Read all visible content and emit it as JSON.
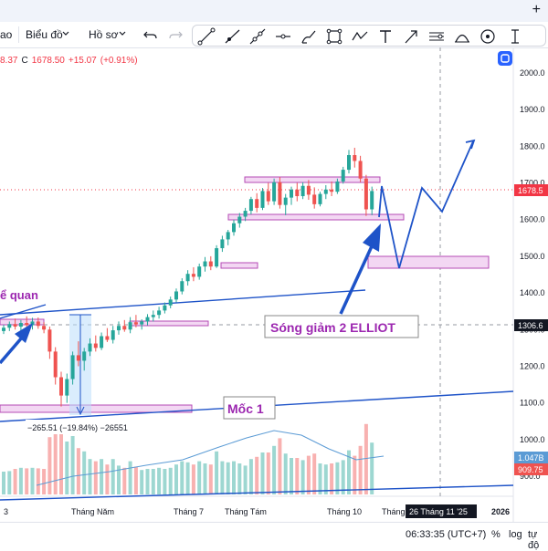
{
  "toolbar": {
    "left_item": "ao",
    "chart_menu": "Biểu đồ",
    "profile_menu": "Hồ sơ",
    "add_icon": "plus-icon",
    "undo_icon": "undo-icon",
    "redo_icon": "redo-icon",
    "dropdown_icon": "chevron-down-icon"
  },
  "drawing_tools": [
    "trend-line-icon",
    "ray-icon",
    "extended-line-icon",
    "horizontal-ray-icon",
    "brush-icon",
    "rectangle-icon",
    "path-icon",
    "text-icon",
    "arrow-marker-icon",
    "fib-icon",
    "curve-icon",
    "circle-icon",
    "more-icon"
  ],
  "ohlc": {
    "partial": "8.37",
    "close_label": "C",
    "close": "1678.50",
    "change": "+15.07",
    "change_pct": "(+0.91%)"
  },
  "price_labels": {
    "current": "1678.5",
    "crosshair": "1306.6",
    "volume_1": "1.047B",
    "volume_2": "909.75"
  },
  "annotations": {
    "left_text": "ể quan",
    "wave_text": "Sóng giảm 2 ELLIOT",
    "milestone_text": "Mốc 1",
    "measure_text": "−265.51 (−19.84%) −26551"
  },
  "crosshair_date": "26 Tháng 11 '25",
  "status": {
    "time": "06:33:35 (UTC+7)",
    "percent": "%",
    "log": "log",
    "auto": "tự độ"
  },
  "colors": {
    "up": "#26a69a",
    "down": "#ef5350",
    "annotation_blue": "#1e53c8",
    "zone_fill": "#f3d7f3",
    "zone_border": "#b44bb4",
    "price_tag": "#f23645",
    "label_purple": "#9c27b0"
  },
  "chart_data": {
    "type": "candlestick",
    "ylim": [
      850,
      2050
    ],
    "yticks": [
      900,
      1000,
      1100,
      1200,
      1300,
      1400,
      1500,
      1600,
      1700,
      1800,
      1900,
      2000
    ],
    "ytick_labels": [
      "900.0",
      "1000.0",
      "1100.0",
      "1200.0",
      "1300.0",
      "1400.0",
      "1500.0",
      "1600.0",
      "1700.0",
      "1800.0",
      "1900.0",
      "2000.0"
    ],
    "x_labels": [
      "3",
      "Tháng Năm",
      "Tháng 7",
      "Tháng Tám",
      "Tháng 10",
      "Tháng",
      "2026"
    ],
    "candles": [
      {
        "i": 0,
        "o": 1296,
        "h": 1313,
        "l": 1288,
        "c": 1305
      },
      {
        "i": 1,
        "o": 1305,
        "h": 1322,
        "l": 1296,
        "c": 1315
      },
      {
        "i": 2,
        "o": 1315,
        "h": 1330,
        "l": 1300,
        "c": 1308
      },
      {
        "i": 3,
        "o": 1308,
        "h": 1326,
        "l": 1294,
        "c": 1318
      },
      {
        "i": 4,
        "o": 1318,
        "h": 1336,
        "l": 1305,
        "c": 1312
      },
      {
        "i": 5,
        "o": 1312,
        "h": 1332,
        "l": 1300,
        "c": 1322
      },
      {
        "i": 6,
        "o": 1322,
        "h": 1333,
        "l": 1302,
        "c": 1310
      },
      {
        "i": 7,
        "o": 1310,
        "h": 1320,
        "l": 1290,
        "c": 1300
      },
      {
        "i": 8,
        "o": 1300,
        "h": 1308,
        "l": 1220,
        "c": 1240
      },
      {
        "i": 9,
        "o": 1240,
        "h": 1252,
        "l": 1150,
        "c": 1170
      },
      {
        "i": 10,
        "o": 1170,
        "h": 1185,
        "l": 1090,
        "c": 1120
      },
      {
        "i": 11,
        "o": 1120,
        "h": 1180,
        "l": 1100,
        "c": 1165
      },
      {
        "i": 12,
        "o": 1165,
        "h": 1240,
        "l": 1150,
        "c": 1230
      },
      {
        "i": 13,
        "o": 1230,
        "h": 1268,
        "l": 1200,
        "c": 1215
      },
      {
        "i": 14,
        "o": 1215,
        "h": 1250,
        "l": 1188,
        "c": 1240
      },
      {
        "i": 15,
        "o": 1240,
        "h": 1276,
        "l": 1228,
        "c": 1262
      },
      {
        "i": 16,
        "o": 1262,
        "h": 1284,
        "l": 1240,
        "c": 1250
      },
      {
        "i": 17,
        "o": 1250,
        "h": 1292,
        "l": 1244,
        "c": 1282
      },
      {
        "i": 18,
        "o": 1282,
        "h": 1304,
        "l": 1266,
        "c": 1272
      },
      {
        "i": 19,
        "o": 1272,
        "h": 1310,
        "l": 1262,
        "c": 1298
      },
      {
        "i": 20,
        "o": 1298,
        "h": 1322,
        "l": 1286,
        "c": 1310
      },
      {
        "i": 21,
        "o": 1310,
        "h": 1326,
        "l": 1294,
        "c": 1300
      },
      {
        "i": 22,
        "o": 1300,
        "h": 1334,
        "l": 1290,
        "c": 1320
      },
      {
        "i": 23,
        "o": 1320,
        "h": 1340,
        "l": 1306,
        "c": 1314
      },
      {
        "i": 24,
        "o": 1314,
        "h": 1328,
        "l": 1300,
        "c": 1322
      },
      {
        "i": 25,
        "o": 1322,
        "h": 1342,
        "l": 1312,
        "c": 1334
      },
      {
        "i": 26,
        "o": 1334,
        "h": 1352,
        "l": 1322,
        "c": 1340
      },
      {
        "i": 27,
        "o": 1340,
        "h": 1362,
        "l": 1330,
        "c": 1352
      },
      {
        "i": 28,
        "o": 1352,
        "h": 1374,
        "l": 1344,
        "c": 1366
      },
      {
        "i": 29,
        "o": 1366,
        "h": 1390,
        "l": 1358,
        "c": 1382
      },
      {
        "i": 30,
        "o": 1382,
        "h": 1412,
        "l": 1374,
        "c": 1404
      },
      {
        "i": 31,
        "o": 1404,
        "h": 1440,
        "l": 1396,
        "c": 1432
      },
      {
        "i": 32,
        "o": 1432,
        "h": 1462,
        "l": 1420,
        "c": 1452
      },
      {
        "i": 33,
        "o": 1452,
        "h": 1470,
        "l": 1432,
        "c": 1444
      },
      {
        "i": 34,
        "o": 1444,
        "h": 1480,
        "l": 1436,
        "c": 1472
      },
      {
        "i": 35,
        "o": 1472,
        "h": 1498,
        "l": 1458,
        "c": 1486
      },
      {
        "i": 36,
        "o": 1486,
        "h": 1500,
        "l": 1462,
        "c": 1472
      },
      {
        "i": 37,
        "o": 1472,
        "h": 1530,
        "l": 1468,
        "c": 1522
      },
      {
        "i": 38,
        "o": 1522,
        "h": 1556,
        "l": 1512,
        "c": 1546
      },
      {
        "i": 39,
        "o": 1546,
        "h": 1572,
        "l": 1530,
        "c": 1566
      },
      {
        "i": 40,
        "o": 1566,
        "h": 1600,
        "l": 1556,
        "c": 1590
      },
      {
        "i": 41,
        "o": 1590,
        "h": 1618,
        "l": 1578,
        "c": 1608
      },
      {
        "i": 42,
        "o": 1608,
        "h": 1632,
        "l": 1596,
        "c": 1624
      },
      {
        "i": 43,
        "o": 1624,
        "h": 1662,
        "l": 1614,
        "c": 1656
      },
      {
        "i": 44,
        "o": 1656,
        "h": 1672,
        "l": 1620,
        "c": 1632
      },
      {
        "i": 45,
        "o": 1632,
        "h": 1686,
        "l": 1626,
        "c": 1678
      },
      {
        "i": 46,
        "o": 1678,
        "h": 1700,
        "l": 1640,
        "c": 1650
      },
      {
        "i": 47,
        "o": 1650,
        "h": 1712,
        "l": 1640,
        "c": 1702
      },
      {
        "i": 48,
        "o": 1702,
        "h": 1716,
        "l": 1630,
        "c": 1640
      },
      {
        "i": 49,
        "o": 1640,
        "h": 1670,
        "l": 1612,
        "c": 1660
      },
      {
        "i": 50,
        "o": 1660,
        "h": 1690,
        "l": 1640,
        "c": 1682
      },
      {
        "i": 51,
        "o": 1682,
        "h": 1700,
        "l": 1650,
        "c": 1664
      },
      {
        "i": 52,
        "o": 1664,
        "h": 1702,
        "l": 1656,
        "c": 1692
      },
      {
        "i": 53,
        "o": 1692,
        "h": 1708,
        "l": 1654,
        "c": 1668
      },
      {
        "i": 54,
        "o": 1668,
        "h": 1688,
        "l": 1630,
        "c": 1642
      },
      {
        "i": 55,
        "o": 1642,
        "h": 1676,
        "l": 1636,
        "c": 1670
      },
      {
        "i": 56,
        "o": 1670,
        "h": 1694,
        "l": 1656,
        "c": 1682
      },
      {
        "i": 57,
        "o": 1682,
        "h": 1704,
        "l": 1664,
        "c": 1676
      },
      {
        "i": 58,
        "o": 1676,
        "h": 1712,
        "l": 1670,
        "c": 1704
      },
      {
        "i": 59,
        "o": 1704,
        "h": 1744,
        "l": 1698,
        "c": 1736
      },
      {
        "i": 60,
        "o": 1736,
        "h": 1790,
        "l": 1726,
        "c": 1776
      },
      {
        "i": 61,
        "o": 1776,
        "h": 1796,
        "l": 1742,
        "c": 1760
      },
      {
        "i": 62,
        "o": 1760,
        "h": 1774,
        "l": 1702,
        "c": 1712
      },
      {
        "i": 63,
        "o": 1712,
        "h": 1722,
        "l": 1610,
        "c": 1628
      },
      {
        "i": 64,
        "o": 1628,
        "h": 1690,
        "l": 1612,
        "c": 1678
      }
    ]
  }
}
